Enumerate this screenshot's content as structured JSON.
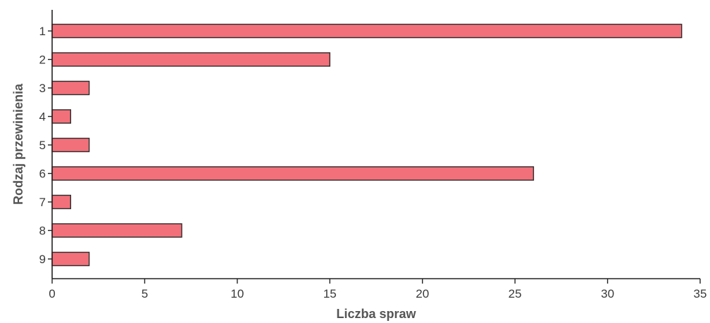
{
  "chart_data": {
    "type": "bar",
    "orientation": "horizontal",
    "categories": [
      "1",
      "2",
      "3",
      "4",
      "5",
      "6",
      "7",
      "8",
      "9"
    ],
    "values": [
      34,
      15,
      2,
      1,
      2,
      26,
      1,
      7,
      2
    ],
    "title": "",
    "xlabel": "Liczba spraw",
    "ylabel": "Rodzaj przewinienia",
    "xlim": [
      0,
      35
    ],
    "xticks": [
      0,
      5,
      10,
      15,
      20,
      25,
      30,
      35
    ],
    "grid": false,
    "legend": "none",
    "colors": {
      "bar": "#f2707a",
      "axis": "#222222"
    }
  }
}
